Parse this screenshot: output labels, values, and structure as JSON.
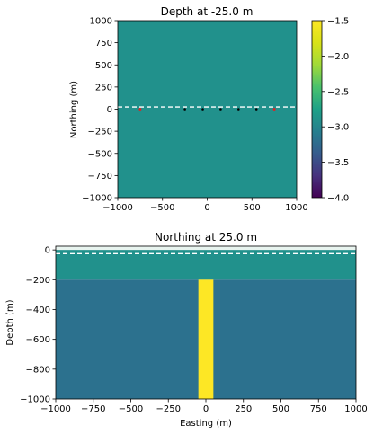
{
  "chart_data": [
    {
      "type": "heatmap",
      "title": "Depth at -25.0 m",
      "xlabel": "",
      "ylabel": "Northing (m)",
      "xlim": [
        -1000,
        1000
      ],
      "ylim": [
        -1000,
        1000
      ],
      "xticks": [
        -1000,
        -500,
        0,
        500,
        1000
      ],
      "yticks": [
        1000,
        750,
        500,
        250,
        0,
        -250,
        -500,
        -750,
        -1000
      ],
      "xtick_labels": [
        "−1000",
        "−500",
        "0",
        "500",
        "1000"
      ],
      "ytick_labels": [
        "1000",
        "750",
        "500",
        "250",
        "0",
        "−250",
        "−500",
        "−750",
        "−1000"
      ],
      "background_value": -2.5,
      "dashed_line_y": 25,
      "stations_black": [
        -250,
        -50,
        150,
        350,
        550
      ],
      "stations_red": [
        -750,
        750
      ],
      "station_y": 0,
      "colorbar": {
        "min": -4.0,
        "max": -1.5,
        "ticks": [
          -1.5,
          -2.0,
          -2.5,
          -3.0,
          -3.5,
          -4.0
        ],
        "tick_labels": [
          "−1.5",
          "−2.0",
          "−2.5",
          "−3.0",
          "−3.5",
          "−4.0"
        ],
        "colormap": "viridis"
      },
      "colors": {
        "field": "#21918c",
        "dashed": "#ffffff",
        "station": "#000000",
        "station_end": "#d62728"
      }
    },
    {
      "type": "heatmap",
      "title": "Northing at 25.0 m",
      "xlabel": "Easting (m)",
      "ylabel": "Depth (m)",
      "xlim": [
        -1000,
        1000
      ],
      "ylim": [
        -1000,
        25
      ],
      "xticks": [
        -1000,
        -750,
        -500,
        -250,
        0,
        250,
        500,
        750,
        1000
      ],
      "yticks": [
        0,
        -200,
        -400,
        -600,
        -800,
        -1000
      ],
      "xtick_labels": [
        "−1000",
        "−750",
        "−500",
        "−250",
        "0",
        "250",
        "500",
        "750",
        "1000"
      ],
      "ytick_labels": [
        "0",
        "−200",
        "−400",
        "−600",
        "−800",
        "−1000"
      ],
      "dashed_line_y": -25,
      "layers": [
        {
          "y_top": 25,
          "y_bottom": 0,
          "value": -1.5,
          "color": "#fde725"
        },
        {
          "y_top": 0,
          "y_bottom": -200,
          "value": -2.5,
          "color": "#21918c"
        },
        {
          "y_top": -200,
          "y_bottom": -1000,
          "value": -3.0,
          "color": "#2c718e"
        }
      ],
      "blocks": [
        {
          "x0": -50,
          "x1": 50,
          "y_top": -200,
          "y_bottom": -1000,
          "value": -1.5,
          "color": "#fde725"
        }
      ],
      "colors": {
        "dashed": "#ffffff",
        "top_band": "#e8f4ef"
      }
    }
  ]
}
